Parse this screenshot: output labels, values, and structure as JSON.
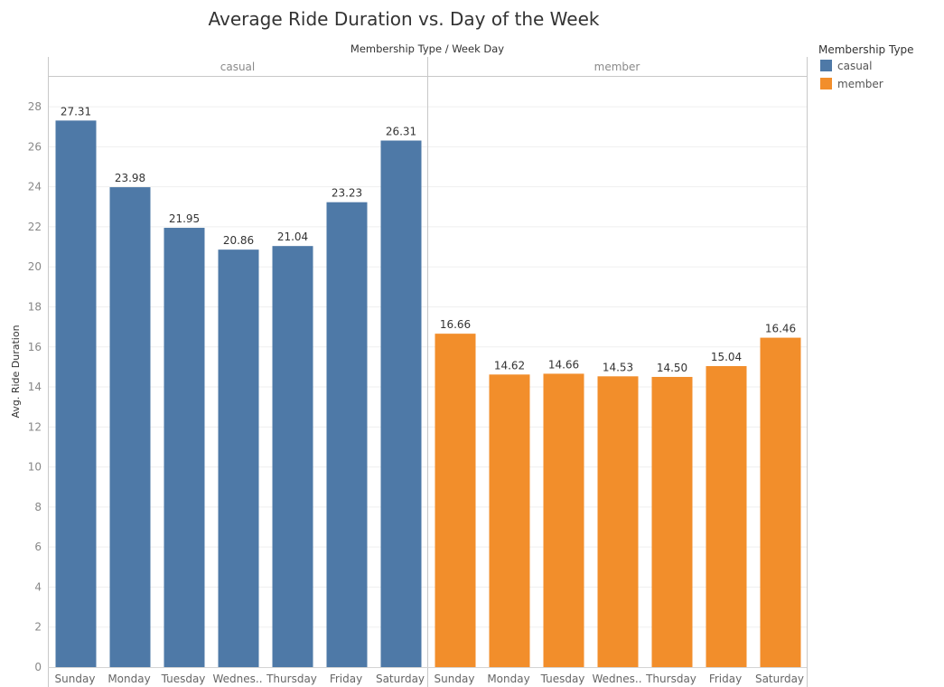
{
  "chart_data": {
    "type": "bar",
    "title": "Average Ride Duration vs. Day of the Week",
    "column_header": "Membership Type  /  Week Day",
    "ylabel": "Avg. Ride Duration",
    "ylim": [
      0,
      29
    ],
    "yticks": [
      0,
      2,
      4,
      6,
      8,
      10,
      12,
      14,
      16,
      18,
      20,
      22,
      24,
      26,
      28
    ],
    "grid": true,
    "legend": {
      "title": "Membership Type",
      "placement": "top-right",
      "items": [
        {
          "label": "casual",
          "color": "#4e79a7"
        },
        {
          "label": "member",
          "color": "#f28e2b"
        }
      ]
    },
    "panels": [
      {
        "name": "casual",
        "color": "#4e79a7",
        "categories": [
          "Sunday",
          "Monday",
          "Tuesday",
          "Wednes..",
          "Thursday",
          "Friday",
          "Saturday"
        ],
        "values": [
          27.31,
          23.98,
          21.95,
          20.86,
          21.04,
          23.23,
          26.31
        ],
        "labels": [
          "27.31",
          "23.98",
          "21.95",
          "20.86",
          "21.04",
          "23.23",
          "26.31"
        ]
      },
      {
        "name": "member",
        "color": "#f28e2b",
        "categories": [
          "Sunday",
          "Monday",
          "Tuesday",
          "Wednes..",
          "Thursday",
          "Friday",
          "Saturday"
        ],
        "values": [
          16.66,
          14.62,
          14.66,
          14.53,
          14.5,
          15.04,
          16.46
        ],
        "labels": [
          "16.66",
          "14.62",
          "14.66",
          "14.53",
          "14.50",
          "15.04",
          "16.46"
        ]
      }
    ]
  }
}
